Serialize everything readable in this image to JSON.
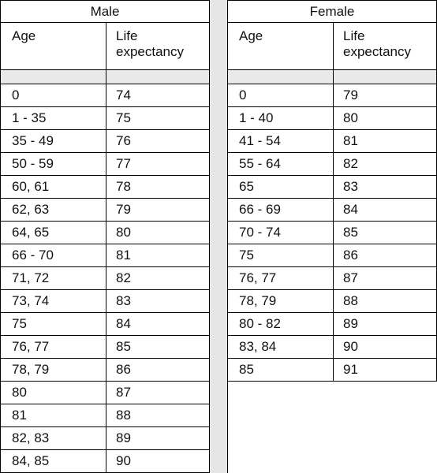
{
  "male": {
    "title": "Male",
    "col_age": "Age",
    "col_life": "Life\nexpectancy",
    "rows": [
      {
        "age": "0",
        "life": "74"
      },
      {
        "age": "1 - 35",
        "life": "75"
      },
      {
        "age": "35 - 49",
        "life": "76"
      },
      {
        "age": "50 - 59",
        "life": "77"
      },
      {
        "age": "60, 61",
        "life": "78"
      },
      {
        "age": "62, 63",
        "life": "79"
      },
      {
        "age": "64, 65",
        "life": "80"
      },
      {
        "age": "66 - 70",
        "life": "81"
      },
      {
        "age": "71, 72",
        "life": "82"
      },
      {
        "age": "73, 74",
        "life": "83"
      },
      {
        "age": "75",
        "life": "84"
      },
      {
        "age": "76, 77",
        "life": "85"
      },
      {
        "age": "78, 79",
        "life": "86"
      },
      {
        "age": "80",
        "life": "87"
      },
      {
        "age": "81",
        "life": "88"
      },
      {
        "age": "82, 83",
        "life": "89"
      },
      {
        "age": "84, 85",
        "life": "90"
      }
    ]
  },
  "female": {
    "title": "Female",
    "col_age": "Age",
    "col_life": "Life\nexpectancy",
    "rows": [
      {
        "age": "0",
        "life": "79"
      },
      {
        "age": "1 - 40",
        "life": "80"
      },
      {
        "age": "41 - 54",
        "life": "81"
      },
      {
        "age": "55 - 64",
        "life": "82"
      },
      {
        "age": "65",
        "life": "83"
      },
      {
        "age": "66 - 69",
        "life": "84"
      },
      {
        "age": "70 - 74",
        "life": "85"
      },
      {
        "age": "75",
        "life": "86"
      },
      {
        "age": "76, 77",
        "life": "87"
      },
      {
        "age": "78, 79",
        "life": "88"
      },
      {
        "age": "80 - 82",
        "life": "89"
      },
      {
        "age": "83, 84",
        "life": "90"
      },
      {
        "age": "85",
        "life": "91"
      }
    ]
  },
  "colors": {
    "border": "#000000",
    "spacer_fill": "#e9e9e9",
    "gap_fill": "#e6e6e6"
  }
}
